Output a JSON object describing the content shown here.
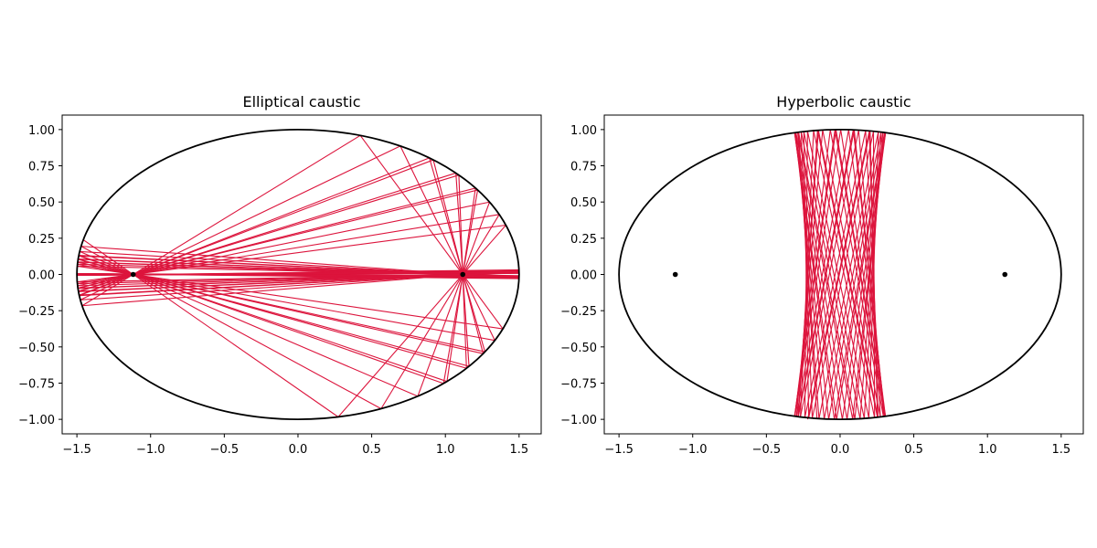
{
  "chart_data": [
    {
      "type": "line",
      "title": "Elliptical caustic",
      "xlim": [
        -1.6,
        1.65
      ],
      "ylim": [
        -1.1,
        1.1
      ],
      "xticks": [
        -1.5,
        -1.0,
        -0.5,
        0.0,
        0.5,
        1.0,
        1.5
      ],
      "xtick_labels": [
        "−1.5",
        "−1.0",
        "−0.5",
        "0.0",
        "0.5",
        "1.0",
        "1.5"
      ],
      "yticks": [
        1.0,
        0.75,
        0.5,
        0.25,
        0.0,
        -0.25,
        -0.5,
        -0.75,
        -1.0
      ],
      "ytick_labels": [
        "1.00",
        "0.75",
        "0.50",
        "0.25",
        "0.00",
        "−0.25",
        "−0.50",
        "−0.75",
        "−1.00"
      ],
      "ellipse": {
        "a": 1.5,
        "b": 1.0,
        "color": "#000000"
      },
      "foci": [
        [
          -1.118,
          0.0
        ],
        [
          1.118,
          0.0
        ]
      ],
      "trajectory": {
        "color": "#dc143c",
        "start_angle": 2.9,
        "start_through_focus": [
          -1.118,
          0.0
        ],
        "bounces": 75
      }
    },
    {
      "type": "line",
      "title": "Hyperbolic caustic",
      "xlim": [
        -1.6,
        1.65
      ],
      "ylim": [
        -1.1,
        1.1
      ],
      "xticks": [
        -1.5,
        -1.0,
        -0.5,
        0.0,
        0.5,
        1.0,
        1.5
      ],
      "xtick_labels": [
        "−1.5",
        "−1.0",
        "−0.5",
        "0.0",
        "0.5",
        "1.0",
        "1.5"
      ],
      "yticks": [
        1.0,
        0.75,
        0.5,
        0.25,
        0.0,
        -0.25,
        -0.5,
        -0.75,
        -1.0
      ],
      "ytick_labels": [
        "1.00",
        "0.75",
        "0.50",
        "0.25",
        "0.00",
        "−0.25",
        "−0.50",
        "−0.75",
        "−1.00"
      ],
      "ellipse": {
        "a": 1.5,
        "b": 1.0,
        "color": "#000000"
      },
      "foci": [
        [
          -1.118,
          0.0
        ],
        [
          1.118,
          0.0
        ]
      ],
      "trajectory": {
        "color": "#dc143c",
        "start_point": [
          -0.22,
          -1.0
        ],
        "start_direction": [
          0.41,
          1.95
        ],
        "bounces": 60
      }
    }
  ]
}
